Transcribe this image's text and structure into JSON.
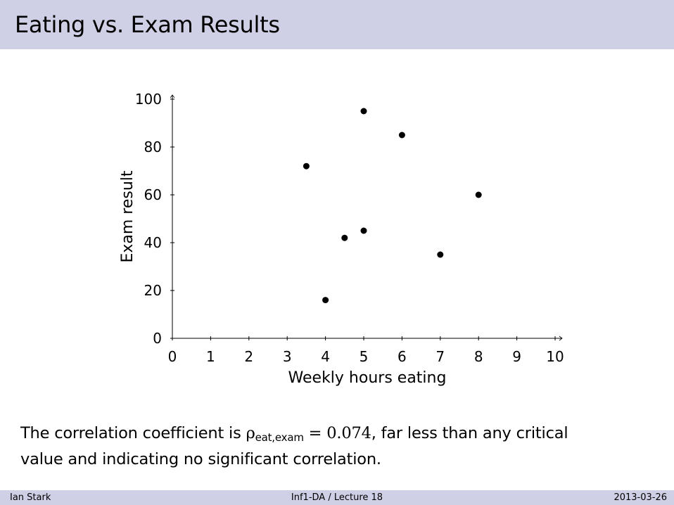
{
  "slide": {
    "title": "Eating vs. Exam Results",
    "caption": {
      "prefix": "The correlation coefficient is ",
      "rho_symbol": "ρ",
      "rho_subscript": "eat,exam",
      "equals_value": " = 0.074",
      "suffix_line1": ", far less than any critical",
      "line2": "value and indicating no significant correlation."
    }
  },
  "footer": {
    "author": "Ian Stark",
    "course": "Inf1-DA / Lecture 18",
    "date": "2013-03-26"
  },
  "chart_data": {
    "type": "scatter",
    "xlabel": "Weekly hours eating",
    "ylabel": "Exam result",
    "xlim": [
      0,
      10
    ],
    "ylim": [
      0,
      100
    ],
    "xticks": [
      0,
      1,
      2,
      3,
      4,
      5,
      6,
      7,
      8,
      9,
      10
    ],
    "yticks": [
      0,
      20,
      40,
      60,
      80,
      100
    ],
    "grid": false,
    "points": [
      {
        "x": 3.5,
        "y": 72
      },
      {
        "x": 4,
        "y": 16
      },
      {
        "x": 4.5,
        "y": 42
      },
      {
        "x": 5,
        "y": 95
      },
      {
        "x": 5,
        "y": 45
      },
      {
        "x": 6,
        "y": 85
      },
      {
        "x": 7,
        "y": 35
      },
      {
        "x": 8,
        "y": 60
      }
    ],
    "point_color": "#000000"
  }
}
